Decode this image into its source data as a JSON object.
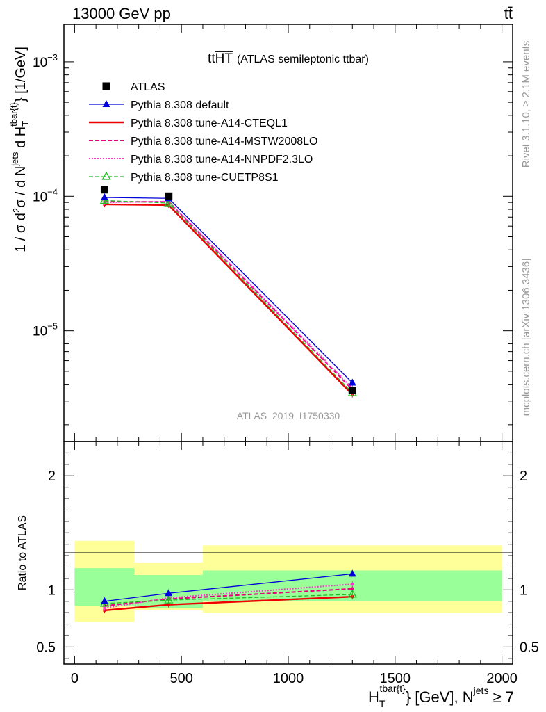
{
  "header": {
    "energy": "13000 GeV pp",
    "process": "tt̄"
  },
  "side": {
    "rivet": "Rivet 3.1.10, ≥ 2.1M events",
    "mcplots": "mcplots.cern.ch [arXiv:1306.3436]"
  },
  "title": {
    "main": "tt",
    "bar": "HT",
    "sub": "(ATLAS semileptonic ttbar)"
  },
  "analysis_id": "ATLAS_2019_I1750330",
  "ylabel_main": {
    "p1": "1 / σ d",
    "p1sup": "2",
    "p2": "σ / d N",
    "p2sup": "jets",
    "p3": " d H",
    "p3sub": "T",
    "p3sup": "tbar{t}",
    "p4": "} [1/GeV]"
  },
  "ylabel_ratio": "Ratio to ATLAS",
  "xlabel": {
    "p1": "H",
    "p1sub": "T",
    "p1sup": "tbar{t}",
    "p2": "} [GeV], N",
    "p2sup": "jets",
    "p3": " ≥ 7"
  },
  "colors": {
    "atlas": "#000000",
    "default": "#0000dd",
    "cteql1": "#ee0000",
    "mstw": "#e8007a",
    "nnpdf": "#ff33cc",
    "cuetp": "#22bb22",
    "band_inner": "#99ff99",
    "band_outer": "#ffff99"
  },
  "chart_data": {
    "type": "line",
    "x": [
      140,
      440,
      1300
    ],
    "xlim": [
      -50,
      2050
    ],
    "xticks": [
      0,
      500,
      1000,
      1500,
      2000
    ],
    "main_ylim": [
      1.5e-06,
      0.0019
    ],
    "main_yscale": "log",
    "main_ytick_labels": [
      {
        "value": 0.001,
        "base": "10",
        "exp": "−3"
      },
      {
        "value": 0.0001,
        "base": "10",
        "exp": "−4"
      },
      {
        "value": 1e-05,
        "base": "10",
        "exp": "−5"
      }
    ],
    "ratio_ylim": [
      0.35,
      2.3
    ],
    "ratio_yticks": [
      0.5,
      1,
      2
    ],
    "ratio_ytick_labels": [
      "0.5",
      "1",
      "2"
    ],
    "series": [
      {
        "name": "ATLAS",
        "key": "atlas",
        "values": [
          0.000112,
          0.0001,
          3.6e-06
        ],
        "ratio": [
          1,
          1,
          1
        ],
        "marker": "square"
      },
      {
        "name": "Pythia 8.308 default",
        "key": "default",
        "values": [
          9.8e-05,
          9.65e-05,
          4.1e-06
        ],
        "ratio": [
          0.9,
          0.97,
          1.14
        ],
        "marker": "triangle"
      },
      {
        "name": "Pythia 8.308 tune-A14-CTEQL1",
        "key": "cteql1",
        "values": [
          8.7e-05,
          8.6e-05,
          3.35e-06
        ],
        "ratio": [
          0.82,
          0.87,
          0.94
        ]
      },
      {
        "name": "Pythia 8.308 tune-A14-MSTW2008LO",
        "key": "mstw",
        "values": [
          9.1e-05,
          9.1e-05,
          3.65e-06
        ],
        "ratio": [
          0.86,
          0.92,
          1.01
        ]
      },
      {
        "name": "Pythia 8.308 tune-A14-NNPDF2.3LO",
        "key": "nnpdf",
        "values": [
          9e-05,
          9.15e-05,
          3.75e-06
        ],
        "ratio": [
          0.84,
          0.93,
          1.05
        ]
      },
      {
        "name": "Pythia 8.308 tune-CUETP8S1",
        "key": "cuetp",
        "values": [
          9.3e-05,
          8.9e-05,
          3.45e-06
        ],
        "ratio": [
          0.88,
          0.91,
          0.96
        ],
        "marker": "open-triangle"
      }
    ],
    "bins": [
      [
        0,
        280
      ],
      [
        280,
        600
      ],
      [
        600,
        2000
      ]
    ],
    "band_inner": [
      [
        0.86,
        1.19
      ],
      [
        0.84,
        1.13
      ],
      [
        0.9,
        1.17
      ]
    ],
    "band_outer": [
      [
        0.72,
        1.43
      ],
      [
        0.82,
        1.24
      ],
      [
        0.8,
        1.39
      ]
    ]
  }
}
